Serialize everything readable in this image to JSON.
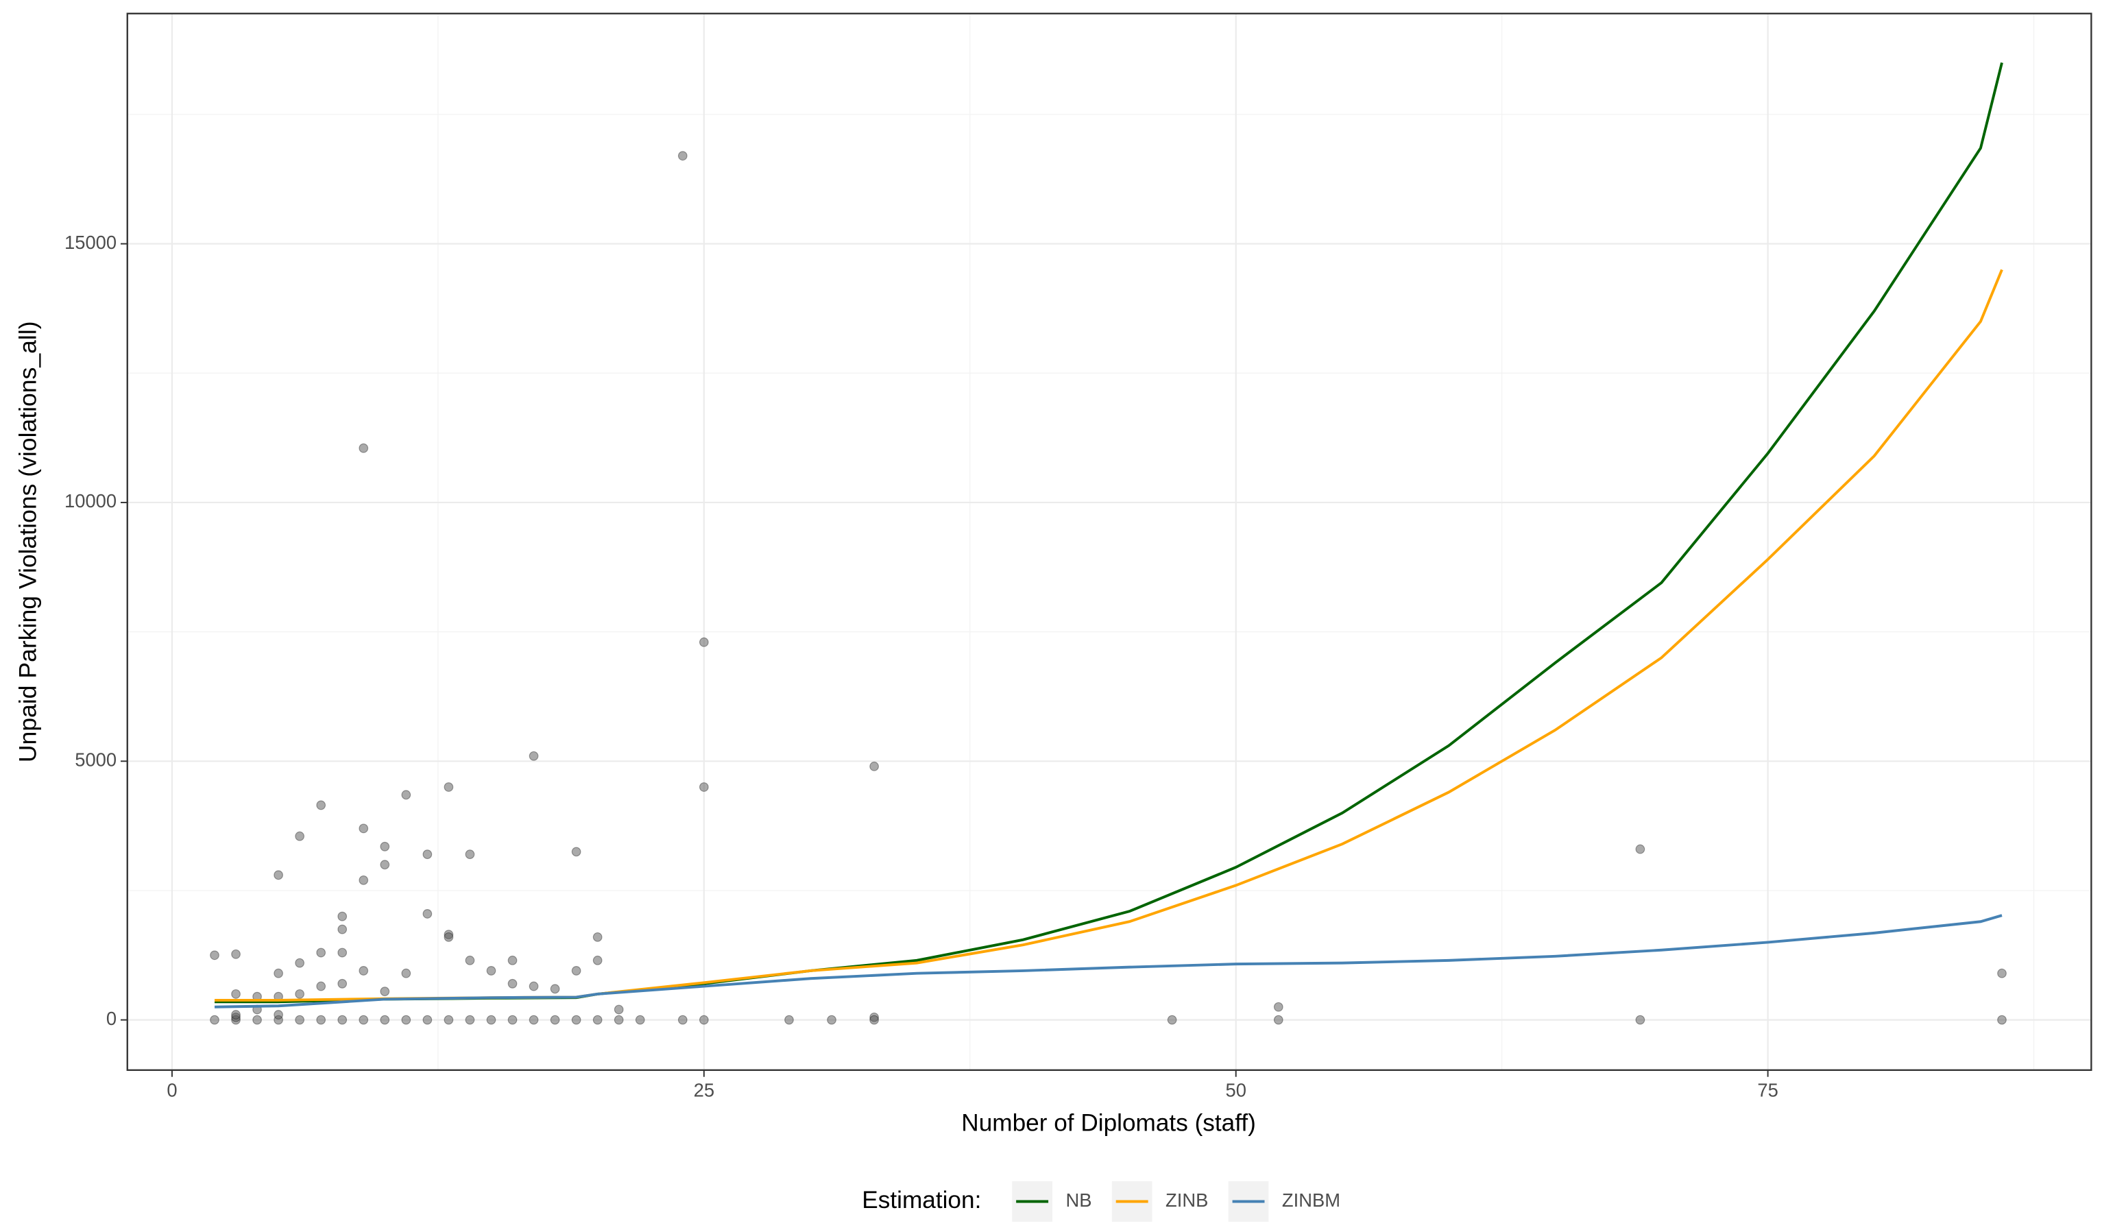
{
  "chart_data": {
    "type": "scatter",
    "x_label": "Number of Diplomats (staff)",
    "y_label": "Unpaid Parking Violations (violations_all)",
    "legend_title": "Estimation:",
    "legend_position": "bottom",
    "grid": true,
    "xlim": [
      -2.1,
      90.2
    ],
    "ylim": [
      -970,
      19450
    ],
    "xticks": [
      0,
      25,
      50,
      75
    ],
    "yticks": [
      0,
      5000,
      10000,
      15000
    ],
    "xminor": [
      12.5,
      37.5,
      62.5,
      87.5
    ],
    "yminor": [
      2500,
      7500,
      12500,
      17500
    ],
    "points": {
      "color": "#555555",
      "x": [
        2,
        2,
        3,
        3,
        3,
        3,
        3,
        4,
        4,
        4,
        5,
        5,
        5,
        5,
        5,
        6,
        6,
        6,
        6,
        7,
        7,
        7,
        7,
        8,
        8,
        8,
        8,
        8,
        9,
        9,
        9,
        9,
        9,
        10,
        10,
        10,
        10,
        11,
        11,
        11,
        12,
        12,
        12,
        13,
        13,
        13,
        13,
        14,
        14,
        14,
        15,
        15,
        16,
        16,
        16,
        17,
        17,
        17,
        18,
        18,
        19,
        19,
        19,
        20,
        20,
        20,
        21,
        21,
        22,
        24,
        24,
        25,
        25,
        25,
        29,
        31,
        33,
        33,
        33,
        47,
        52,
        52,
        69,
        69,
        86,
        86
      ],
      "y": [
        1250,
        0,
        1270,
        500,
        0,
        50,
        100,
        450,
        0,
        200,
        2800,
        900,
        450,
        0,
        100,
        3550,
        1100,
        500,
        0,
        4150,
        1300,
        650,
        0,
        2000,
        1750,
        1300,
        700,
        0,
        11050,
        3700,
        2700,
        950,
        0,
        3350,
        3000,
        550,
        0,
        4350,
        900,
        0,
        3200,
        2050,
        0,
        4500,
        1650,
        1600,
        0,
        3200,
        1150,
        0,
        950,
        0,
        1150,
        700,
        0,
        5100,
        650,
        0,
        600,
        0,
        3250,
        950,
        0,
        1600,
        1150,
        0,
        200,
        0,
        0,
        16700,
        0,
        7300,
        4500,
        0,
        0,
        0,
        4900,
        50,
        0,
        0,
        250,
        0,
        3300,
        0,
        900,
        0
      ]
    },
    "series": [
      {
        "name": "NB",
        "color": "#006400",
        "x": [
          2,
          5,
          10,
          15,
          19,
          20,
          25,
          30,
          35,
          40,
          45,
          50,
          55,
          60,
          65,
          70,
          75,
          80,
          85,
          86
        ],
        "values": [
          350,
          350,
          400,
          420,
          430,
          500,
          700,
          950,
          1150,
          1550,
          2100,
          2950,
          4000,
          5300,
          6900,
          8450,
          10950,
          13700,
          16850,
          18500
        ]
      },
      {
        "name": "ZINB",
        "color": "#FFA500",
        "x": [
          2,
          5,
          10,
          15,
          19,
          20,
          25,
          30,
          35,
          40,
          45,
          50,
          55,
          60,
          65,
          70,
          75,
          80,
          85,
          86
        ],
        "values": [
          380,
          380,
          410,
          430,
          440,
          500,
          720,
          950,
          1100,
          1450,
          1900,
          2600,
          3400,
          4400,
          5600,
          7000,
          8900,
          10900,
          13500,
          14500
        ]
      },
      {
        "name": "ZINBM",
        "color": "#4682B4",
        "x": [
          2,
          5,
          10,
          15,
          19,
          20,
          25,
          30,
          35,
          40,
          45,
          50,
          55,
          60,
          65,
          70,
          75,
          80,
          85,
          86
        ],
        "values": [
          250,
          270,
          400,
          430,
          440,
          500,
          650,
          800,
          900,
          950,
          1020,
          1080,
          1100,
          1150,
          1230,
          1350,
          1500,
          1680,
          1900,
          2020
        ]
      }
    ]
  }
}
